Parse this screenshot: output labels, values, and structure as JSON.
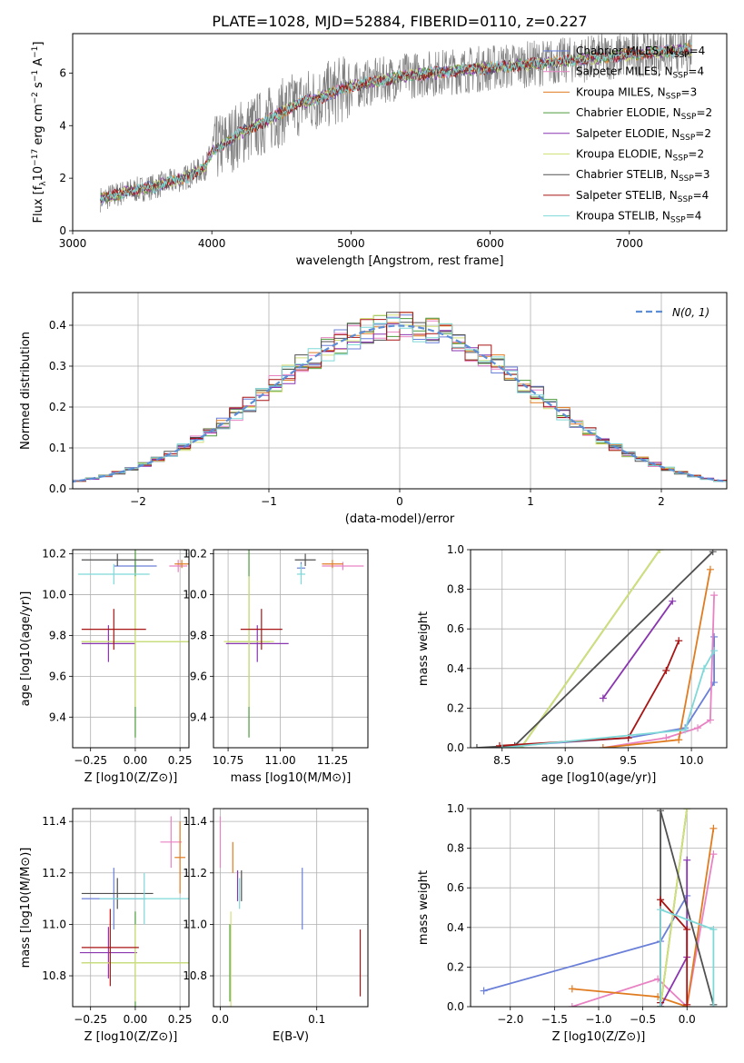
{
  "figure_title": "PLATE=1028, MJD=52884, FIBERID=0110, z=0.227",
  "colors": {
    "Chabrier MILES": "#6a7fd8",
    "Salpeter MILES": "#e882c3",
    "Kroupa MILES": "#e07b20",
    "Chabrier ELODIE": "#4c9a3c",
    "Salpeter ELODIE": "#8a35b0",
    "Kroupa ELODIE": "#d2e07a",
    "Chabrier STELIB": "#505050",
    "Salpeter STELIB": "#a81414",
    "Kroupa STELIB": "#7fd8d8",
    "grid": "#b0b0b0",
    "normal": "#5b8ed6"
  },
  "chart_data": [
    {
      "id": "spectrum",
      "type": "line",
      "xlabel": "wavelength [Angstrom, rest frame]",
      "ylabel": "Flux [f_λ10^-17 erg cm^-2 s^-1 A^-1]",
      "ylabel_parts": {
        "a": "Flux [f",
        "b": "λ",
        "c": "10",
        "d": "−17",
        "e": " erg cm",
        "f": "−2",
        "g": " s",
        "h": "−1",
        "i": " A",
        "j": "−1",
        "k": "]"
      },
      "xlim": [
        3000,
        7700
      ],
      "ylim": [
        0,
        7.5
      ],
      "xticks": [
        "3000",
        "4000",
        "5000",
        "6000",
        "7000"
      ],
      "yticks": [
        "0",
        "2",
        "4",
        "6"
      ],
      "legend": [
        {
          "name": "Chabrier MILES, N",
          "sub": "SSP",
          "val": "=4"
        },
        {
          "name": "Salpeter MILES, N",
          "sub": "SSP",
          "val": "=4"
        },
        {
          "name": "Kroupa MILES, N",
          "sub": "SSP",
          "val": "=3"
        },
        {
          "name": "Chabrier ELODIE, N",
          "sub": "SSP",
          "val": "=2"
        },
        {
          "name": "Salpeter ELODIE, N",
          "sub": "SSP",
          "val": "=2"
        },
        {
          "name": "Kroupa ELODIE, N",
          "sub": "SSP",
          "val": "=2"
        },
        {
          "name": "Chabrier STELIB, N",
          "sub": "SSP",
          "val": "=3"
        },
        {
          "name": "Salpeter STELIB, N",
          "sub": "SSP",
          "val": "=4"
        },
        {
          "name": "Kroupa STELIB, N",
          "sub": "SSP",
          "val": "=4"
        }
      ],
      "continuum": [
        [
          3200,
          1.2
        ],
        [
          3400,
          1.5
        ],
        [
          3600,
          1.7
        ],
        [
          3800,
          2.0
        ],
        [
          3950,
          2.4
        ],
        [
          4000,
          3.0
        ],
        [
          4200,
          3.7
        ],
        [
          4400,
          4.2
        ],
        [
          4600,
          4.8
        ],
        [
          4800,
          5.1
        ],
        [
          5000,
          5.5
        ],
        [
          5200,
          5.7
        ],
        [
          5400,
          5.9
        ],
        [
          5600,
          6.0
        ],
        [
          5800,
          6.1
        ],
        [
          6000,
          6.2
        ],
        [
          6200,
          6.3
        ],
        [
          6400,
          6.4
        ],
        [
          6600,
          6.5
        ],
        [
          6800,
          6.6
        ],
        [
          7000,
          6.7
        ],
        [
          7200,
          6.8
        ],
        [
          7450,
          6.9
        ]
      ]
    },
    {
      "id": "residuals",
      "type": "histogram",
      "xlabel": "(data-model)/error",
      "ylabel": "Normed distribution",
      "xlim": [
        -2.5,
        2.5
      ],
      "ylim": [
        0,
        0.48
      ],
      "xticks": [
        "−2",
        "−1",
        "0",
        "1",
        "2"
      ],
      "yticks": [
        "0.0",
        "0.1",
        "0.2",
        "0.3",
        "0.4"
      ],
      "legend_label": "N(0, 1)",
      "bin_width": 0.1
    },
    {
      "id": "age_vs_Z",
      "type": "scatter",
      "xlabel": "Z [log10(Z/Z⊙)]",
      "ylabel": "age [log10(age/yr)]",
      "xlim": [
        -0.35,
        0.3
      ],
      "ylim": [
        9.25,
        10.22
      ],
      "xticks": [
        "−0.25",
        "0.00",
        "0.25"
      ],
      "yticks": [
        "9.4",
        "9.6",
        "9.8",
        "10.0",
        "10.2"
      ],
      "points": [
        {
          "model": "Chabrier MILES",
          "x": 0.0,
          "y": 10.14,
          "xerr": 0.12,
          "yerr": 0.03
        },
        {
          "model": "Salpeter MILES",
          "x": 0.24,
          "y": 10.14,
          "xerr": 0.05,
          "yerr": 0.03
        },
        {
          "model": "Kroupa MILES",
          "x": 0.26,
          "y": 10.15,
          "xerr": 0.04,
          "yerr": 0.02
        },
        {
          "model": "Chabrier ELODIE",
          "x": 0.0,
          "y": 9.77,
          "xerr": 0.3,
          "yerr": 0.47
        },
        {
          "model": "Salpeter ELODIE",
          "x": -0.15,
          "y": 9.76,
          "xerr": 0.15,
          "yerr": 0.09
        },
        {
          "model": "Kroupa ELODIE",
          "x": 0.0,
          "y": 9.77,
          "xerr": 0.3,
          "yerr": 0.32
        },
        {
          "model": "Chabrier STELIB",
          "x": -0.1,
          "y": 10.17,
          "xerr": 0.2,
          "yerr": 0.03
        },
        {
          "model": "Salpeter STELIB",
          "x": -0.12,
          "y": 9.83,
          "xerr": 0.18,
          "yerr": 0.1
        },
        {
          "model": "Kroupa STELIB",
          "x": -0.12,
          "y": 10.1,
          "xerr": 0.2,
          "yerr": 0.05
        }
      ]
    },
    {
      "id": "age_vs_mass",
      "type": "scatter",
      "xlabel": "mass [log10(M/M⊙)]",
      "ylabel": "",
      "xlim": [
        10.68,
        11.42
      ],
      "ylim": [
        9.25,
        10.22
      ],
      "xticks": [
        "10.75",
        "11.00",
        "11.25"
      ],
      "yticks": [
        "9.4",
        "9.6",
        "9.8",
        "10.0",
        "10.2"
      ],
      "points": [
        {
          "model": "Chabrier MILES",
          "x": 11.1,
          "y": 10.13,
          "xerr": 0.02,
          "yerr": 0.03
        },
        {
          "model": "Salpeter MILES",
          "x": 11.3,
          "y": 10.14,
          "xerr": 0.1,
          "yerr": 0.02
        },
        {
          "model": "Kroupa MILES",
          "x": 11.25,
          "y": 10.15,
          "xerr": 0.05,
          "yerr": 0.02
        },
        {
          "model": "Chabrier ELODIE",
          "x": 10.85,
          "y": 9.77,
          "xerr": 0.1,
          "yerr": 0.47
        },
        {
          "model": "Salpeter ELODIE",
          "x": 10.89,
          "y": 9.76,
          "xerr": 0.15,
          "yerr": 0.09
        },
        {
          "model": "Kroupa ELODIE",
          "x": 10.85,
          "y": 9.77,
          "xerr": 0.12,
          "yerr": 0.32
        },
        {
          "model": "Chabrier STELIB",
          "x": 11.12,
          "y": 10.17,
          "xerr": 0.05,
          "yerr": 0.03
        },
        {
          "model": "Salpeter STELIB",
          "x": 10.91,
          "y": 9.83,
          "xerr": 0.1,
          "yerr": 0.1
        },
        {
          "model": "Kroupa STELIB",
          "x": 11.1,
          "y": 10.1,
          "xerr": 0.02,
          "yerr": 0.05
        }
      ]
    },
    {
      "id": "massweight_vs_age",
      "type": "line",
      "xlabel": "age [log10(age/yr)]",
      "ylabel": "mass weight",
      "xlim": [
        8.25,
        10.28
      ],
      "ylim": [
        0,
        1
      ],
      "xticks": [
        "8.5",
        "9.0",
        "9.5",
        "10.0"
      ],
      "yticks": [
        "0.0",
        "0.2",
        "0.4",
        "0.6",
        "0.8",
        "1.0"
      ],
      "series": [
        {
          "model": "Chabrier MILES",
          "x": [
            8.6,
            9.5,
            9.95,
            10.18,
            10.18
          ],
          "y": [
            0.01,
            0.05,
            0.1,
            0.33,
            0.56
          ]
        },
        {
          "model": "Salpeter MILES",
          "x": [
            9.3,
            9.8,
            10.05,
            10.15,
            10.18
          ],
          "y": [
            0.0,
            0.05,
            0.1,
            0.14,
            0.77
          ]
        },
        {
          "model": "Kroupa MILES",
          "x": [
            9.3,
            9.9,
            10.15
          ],
          "y": [
            0.0,
            0.04,
            0.9
          ]
        },
        {
          "model": "Chabrier ELODIE",
          "x": [
            8.65,
            9.75
          ],
          "y": [
            0.0,
            1.0
          ]
        },
        {
          "model": "Salpeter ELODIE",
          "x": [
            9.3,
            9.85
          ],
          "y": [
            0.25,
            0.74
          ]
        },
        {
          "model": "Kroupa ELODIE",
          "x": [
            8.65,
            9.75
          ],
          "y": [
            0.0,
            1.0
          ]
        },
        {
          "model": "Chabrier STELIB",
          "x": [
            8.3,
            8.6,
            10.17
          ],
          "y": [
            0.0,
            0.01,
            0.99
          ]
        },
        {
          "model": "Salpeter STELIB",
          "x": [
            8.48,
            9.5,
            9.8,
            9.9
          ],
          "y": [
            0.01,
            0.05,
            0.39,
            0.54
          ]
        },
        {
          "model": "Kroupa STELIB",
          "x": [
            8.5,
            9.95,
            10.1,
            10.18
          ],
          "y": [
            0.0,
            0.09,
            0.4,
            0.49
          ]
        }
      ]
    },
    {
      "id": "mass_vs_Z",
      "type": "scatter",
      "xlabel": "Z [log10(Z/Z⊙)]",
      "ylabel": "mass [log10(M/M⊙)]",
      "xlim": [
        -0.35,
        0.3
      ],
      "ylim": [
        10.68,
        11.45
      ],
      "xticks": [
        "−0.25",
        "0.00",
        "0.25"
      ],
      "yticks": [
        "10.8",
        "11.0",
        "11.2",
        "11.4"
      ],
      "points": [
        {
          "model": "Chabrier MILES",
          "x": -0.12,
          "y": 11.1,
          "xerr": 0.18,
          "yerr": 0.12
        },
        {
          "model": "Salpeter MILES",
          "x": 0.2,
          "y": 11.32,
          "xerr": 0.06,
          "yerr": 0.1
        },
        {
          "model": "Kroupa MILES",
          "x": 0.25,
          "y": 11.26,
          "xerr": 0.03,
          "yerr": 0.14
        },
        {
          "model": "Chabrier ELODIE",
          "x": 0.0,
          "y": 10.85,
          "xerr": 0.3,
          "yerr": 0.2
        },
        {
          "model": "Salpeter ELODIE",
          "x": -0.15,
          "y": 10.89,
          "xerr": 0.16,
          "yerr": 0.1
        },
        {
          "model": "Kroupa ELODIE",
          "x": 0.0,
          "y": 10.85,
          "xerr": 0.3,
          "yerr": 0.15
        },
        {
          "model": "Chabrier STELIB",
          "x": -0.1,
          "y": 11.12,
          "xerr": 0.2,
          "yerr": 0.06
        },
        {
          "model": "Salpeter STELIB",
          "x": -0.14,
          "y": 10.91,
          "xerr": 0.16,
          "yerr": 0.15
        },
        {
          "model": "Kroupa STELIB",
          "x": 0.05,
          "y": 11.1,
          "xerr": 0.25,
          "yerr": 0.1
        }
      ]
    },
    {
      "id": "mass_vs_ebv",
      "type": "scatter",
      "xlabel": "E(B-V)",
      "ylabel": "",
      "xlim": [
        -0.007,
        0.153
      ],
      "ylim": [
        10.68,
        11.45
      ],
      "xticks": [
        "0.0",
        "0.1"
      ],
      "yticks": [
        "10.8",
        "11.0",
        "11.2",
        "11.4"
      ],
      "points": [
        {
          "model": "Chabrier MILES",
          "x": 0.085,
          "y": 11.1,
          "xerr": 0,
          "yerr": 0.12
        },
        {
          "model": "Salpeter MILES",
          "x": 0.0,
          "y": 11.32,
          "xerr": 0,
          "yerr": 0.1
        },
        {
          "model": "Kroupa MILES",
          "x": 0.013,
          "y": 11.26,
          "xerr": 0,
          "yerr": 0.06
        },
        {
          "model": "Chabrier ELODIE",
          "x": 0.01,
          "y": 10.85,
          "xerr": 0,
          "yerr": 0.15
        },
        {
          "model": "Salpeter ELODIE",
          "x": 0.018,
          "y": 11.15,
          "xerr": 0,
          "yerr": 0.06
        },
        {
          "model": "Kroupa ELODIE",
          "x": 0.011,
          "y": 10.85,
          "xerr": 0,
          "yerr": 0.2
        },
        {
          "model": "Chabrier STELIB",
          "x": 0.022,
          "y": 11.15,
          "xerr": 0,
          "yerr": 0.06
        },
        {
          "model": "Salpeter STELIB",
          "x": 0.145,
          "y": 10.85,
          "xerr": 0,
          "yerr": 0.13
        },
        {
          "model": "Kroupa STELIB",
          "x": 0.02,
          "y": 11.12,
          "xerr": 0,
          "yerr": 0.06
        }
      ]
    },
    {
      "id": "massweight_vs_Z",
      "type": "line",
      "xlabel": "Z [log10(Z/Z⊙)]",
      "ylabel": "mass weight",
      "xlim": [
        -2.45,
        0.45
      ],
      "ylim": [
        0,
        1
      ],
      "xticks": [
        "−2.0",
        "−1.5",
        "−1.0",
        "−0.5",
        "0.0"
      ],
      "yticks": [
        "0.0",
        "0.2",
        "0.4",
        "0.6",
        "0.8",
        "1.0"
      ],
      "series": [
        {
          "model": "Chabrier MILES",
          "x": [
            -2.3,
            -0.3,
            0.0
          ],
          "y": [
            0.08,
            0.33,
            0.56
          ]
        },
        {
          "model": "Salpeter MILES",
          "x": [
            -1.3,
            -0.33,
            0.0,
            0.3
          ],
          "y": [
            0.0,
            0.14,
            0.0,
            0.77
          ]
        },
        {
          "model": "Kroupa MILES",
          "x": [
            -1.3,
            -0.33,
            0.0,
            0.3
          ],
          "y": [
            0.09,
            0.05,
            0.0,
            0.9
          ]
        },
        {
          "model": "Chabrier ELODIE",
          "x": [
            -0.3,
            0.0
          ],
          "y": [
            0.0,
            1.0
          ]
        },
        {
          "model": "Salpeter ELODIE",
          "x": [
            -0.3,
            0.0,
            0.0
          ],
          "y": [
            0.0,
            0.25,
            0.74
          ]
        },
        {
          "model": "Kroupa ELODIE",
          "x": [
            -0.3,
            0.0
          ],
          "y": [
            0.0,
            1.0
          ]
        },
        {
          "model": "Chabrier STELIB",
          "x": [
            -0.3,
            -0.3,
            0.3
          ],
          "y": [
            0.0,
            0.99,
            0.01
          ]
        },
        {
          "model": "Salpeter STELIB",
          "x": [
            -0.3,
            -0.3,
            0.0,
            0.0
          ],
          "y": [
            0.02,
            0.54,
            0.39,
            0.01
          ]
        },
        {
          "model": "Kroupa STELIB",
          "x": [
            -0.3,
            -0.3,
            0.3,
            0.3
          ],
          "y": [
            0.0,
            0.49,
            0.39,
            0.0
          ]
        }
      ]
    }
  ]
}
